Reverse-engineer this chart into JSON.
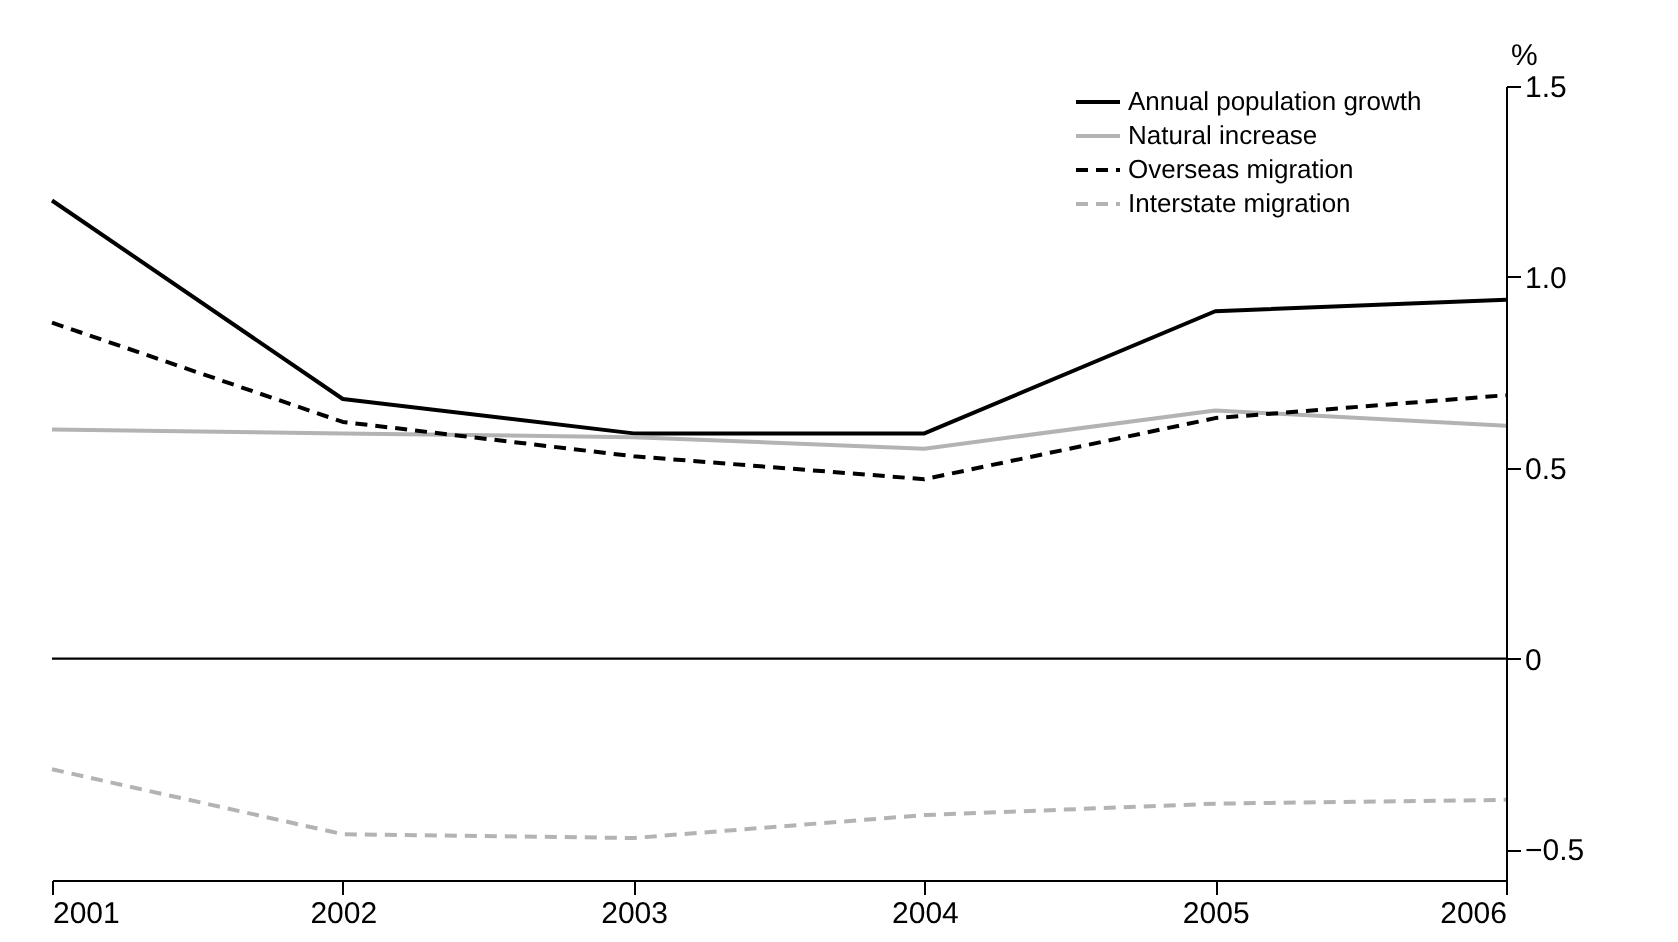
{
  "chart_data": {
    "type": "line",
    "x": [
      2001,
      2002,
      2003,
      2004,
      2005,
      2006
    ],
    "series": [
      {
        "name": "Annual population growth",
        "color": "#000000",
        "line_style": "solid",
        "values": [
          1.2,
          0.68,
          0.59,
          0.59,
          0.91,
          0.94
        ]
      },
      {
        "name": "Natural increase",
        "color": "#b3b3b3",
        "line_style": "solid",
        "values": [
          0.6,
          0.59,
          0.58,
          0.55,
          0.65,
          0.61
        ]
      },
      {
        "name": "Overseas migration",
        "color": "#000000",
        "line_style": "dashed",
        "values": [
          0.88,
          0.62,
          0.53,
          0.47,
          0.63,
          0.69
        ]
      },
      {
        "name": "Interstate migration",
        "color": "#b3b3b3",
        "line_style": "dashed",
        "values": [
          -0.29,
          -0.46,
          -0.47,
          -0.41,
          -0.38,
          -0.37
        ]
      }
    ],
    "ylabel": "%",
    "xlim": [
      2001,
      2006
    ],
    "xticks": [
      2001,
      2002,
      2003,
      2004,
      2005,
      2006
    ],
    "ylim": [
      -0.58,
      1.5
    ],
    "yticks": [
      {
        "value": -0.5,
        "label": "−0.5"
      },
      0,
      0.5,
      {
        "value": 1.0,
        "label": "1.0"
      },
      1.5
    ],
    "ref_lines": [
      {
        "axis": "y",
        "value": 0,
        "color": "#000000"
      }
    ],
    "grid": false,
    "legend": "top right",
    "marker": "none"
  }
}
